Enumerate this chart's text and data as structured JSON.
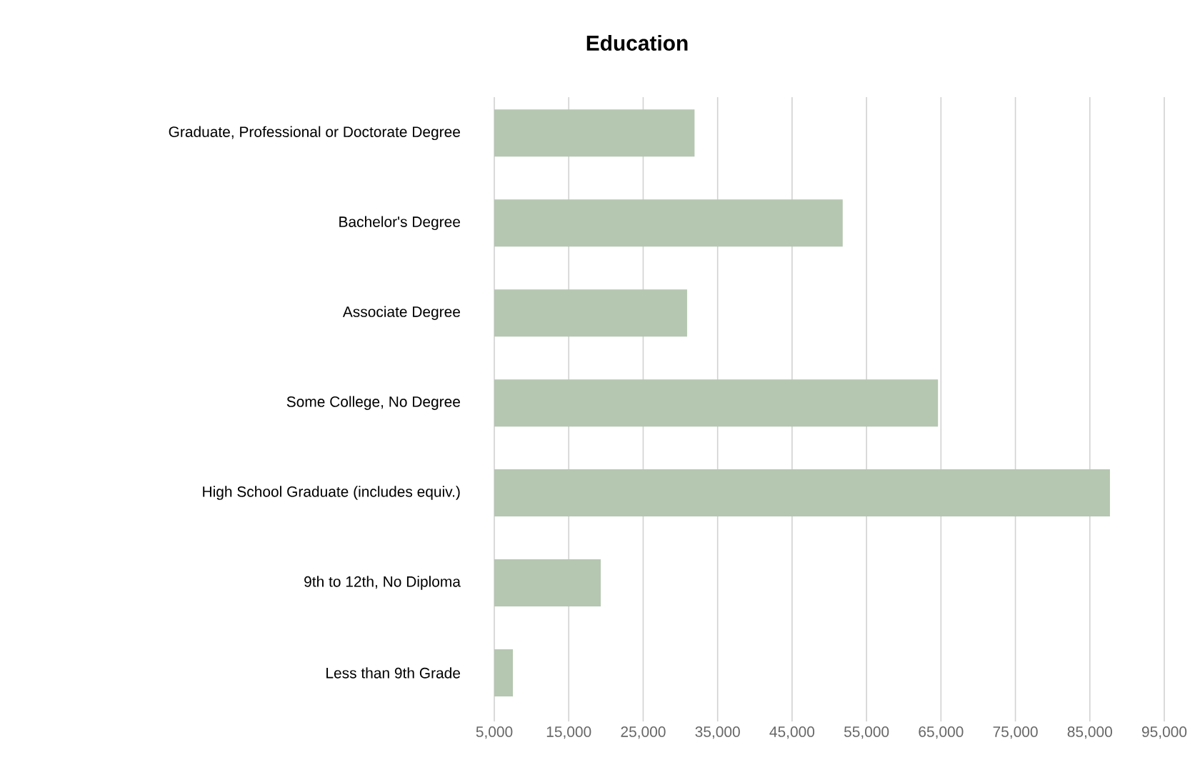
{
  "chart_data": {
    "type": "bar",
    "orientation": "horizontal",
    "title": "Education",
    "categories": [
      "Graduate, Professional or Doctorate Degree",
      "Bachelor's Degree",
      "Associate Degree",
      "Some College, No Degree",
      "High School Graduate (includes equiv.)",
      "9th to 12th, No Diploma",
      "Less than 9th Grade"
    ],
    "values": [
      31900,
      51800,
      30900,
      64600,
      87700,
      19300,
      7500
    ],
    "color": "#b5c6b1",
    "xlim": [
      5000,
      95000
    ],
    "xticks": [
      {
        "value": 5000,
        "label": "5,000"
      },
      {
        "value": 15000,
        "label": "15,000"
      },
      {
        "value": 25000,
        "label": "25,000"
      },
      {
        "value": 35000,
        "label": "35,000"
      },
      {
        "value": 45000,
        "label": "45,000"
      },
      {
        "value": 55000,
        "label": "55,000"
      },
      {
        "value": 65000,
        "label": "65,000"
      },
      {
        "value": 75000,
        "label": "75,000"
      },
      {
        "value": 85000,
        "label": "85,000"
      },
      {
        "value": 95000,
        "label": "95,000"
      }
    ],
    "grid": "x"
  }
}
